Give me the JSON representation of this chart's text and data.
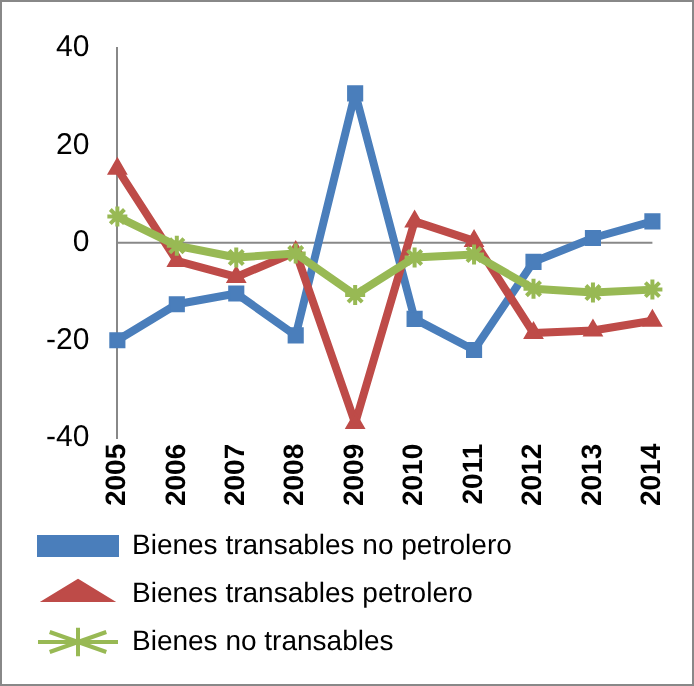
{
  "chart_data": {
    "type": "line",
    "categories": [
      "2005",
      "2006",
      "2007",
      "2008",
      "2009",
      "2010",
      "2011",
      "2012",
      "2013",
      "2014"
    ],
    "series": [
      {
        "name": "Bienes transables no petrolero",
        "color": "#4a7ebb",
        "marker": "square",
        "values": [
          -20,
          -12.6,
          -10.4,
          -19,
          30.7,
          -15.6,
          -22,
          -3.9,
          1,
          4.4
        ]
      },
      {
        "name": "Bienes transables petrolero",
        "color": "#be4b48",
        "marker": "triangle",
        "values": [
          15.2,
          -3.7,
          -7,
          -1.9,
          -37,
          4.4,
          0.4,
          -18.5,
          -18,
          -16
        ]
      },
      {
        "name": "Bienes no transables",
        "color": "#98b954",
        "marker": "cross",
        "values": [
          5.4,
          -0.6,
          -3,
          -2.2,
          -10.7,
          -3,
          -2.4,
          -9.4,
          -10.2,
          -9.6
        ]
      }
    ],
    "ylim": [
      -40,
      40
    ],
    "yticks": [
      -40,
      -20,
      0,
      20,
      40
    ],
    "grid": false,
    "legend": "bottom",
    "line_style": "solid",
    "ref_lines": [
      {
        "axis": "y",
        "value": 0,
        "color": "#888888"
      }
    ]
  }
}
